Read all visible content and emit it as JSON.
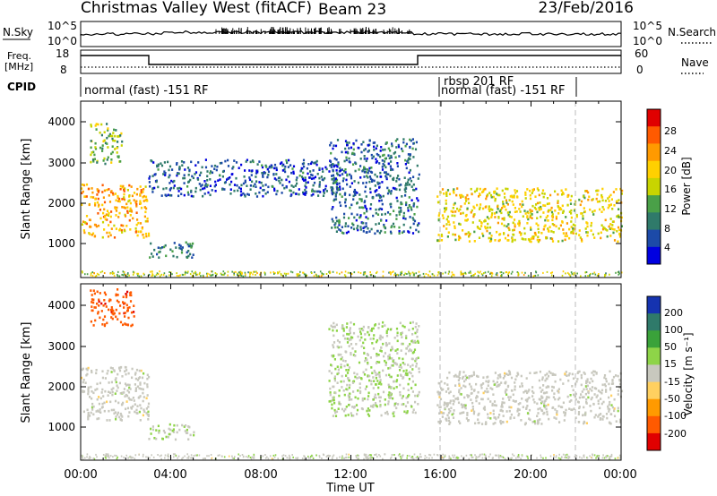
{
  "header": {
    "title": "Christmas Valley West (fitACF)",
    "beam": "Beam 23",
    "date": "23/Feb/2016"
  },
  "top_panels": {
    "nsky_label": "N.Sky",
    "nsky_ticks": [
      "10^5",
      "10^0"
    ],
    "nsearch_label": "N.Search",
    "nsearch_ticks": [
      "10^5",
      "10^0"
    ],
    "freq_label_1": "Freq.",
    "freq_label_2": "[MHz]",
    "freq_ticks": [
      "18",
      "8"
    ],
    "nave_label": "Nave",
    "nave_ticks": [
      "60",
      "0"
    ],
    "cpid_label": "CPID",
    "cpid_segments": [
      "normal (fast) -151 RF",
      "rbsp 201 RF",
      "normal (fast) -151 RF"
    ]
  },
  "axes": {
    "ylabel": "Slant Range [km]",
    "yticks": [
      "4000",
      "3000",
      "2000",
      "1000"
    ],
    "xticks": [
      "00:00",
      "04:00",
      "08:00",
      "12:00",
      "16:00",
      "20:00",
      "00:00"
    ],
    "xlabel": "Time UT"
  },
  "power_scale": {
    "label": "Power [dB]",
    "ticks": [
      "28",
      "24",
      "20",
      "16",
      "12",
      "8",
      "4"
    ],
    "colors": [
      "#e00000",
      "#ff5a00",
      "#ff9a00",
      "#ffd000",
      "#c8d400",
      "#4aa048",
      "#2f7a6a",
      "#1c4aa8",
      "#0000e0"
    ]
  },
  "velocity_scale": {
    "label": "Velocity [m s⁻¹]",
    "ticks": [
      "200",
      "100",
      "50",
      "15",
      "-15",
      "-50",
      "-100",
      "-200"
    ],
    "colors": [
      "#1533b0",
      "#2f7a6a",
      "#3aa23a",
      "#8ed448",
      "#c8c8be",
      "#ffd060",
      "#ff9a00",
      "#ff5a00",
      "#e00000"
    ]
  },
  "chart_data": [
    {
      "type": "heatmap",
      "title": "Power",
      "xlabel": "Time UT",
      "ylabel": "Slant Range [km]",
      "xlim": [
        0,
        24
      ],
      "ylim": [
        200,
        4500
      ],
      "zlabel": "Power [dB]",
      "zlim": [
        0,
        32
      ],
      "features": [
        {
          "t0": 0.0,
          "t1": 3.0,
          "r0": 1200,
          "r1": 2500,
          "z": 22
        },
        {
          "t0": 0.4,
          "t1": 1.8,
          "r0": 3000,
          "r1": 4000,
          "z": 14
        },
        {
          "t0": 3.0,
          "t1": 5.0,
          "r0": 700,
          "r1": 1100,
          "z": 9
        },
        {
          "t0": 3.0,
          "t1": 11.5,
          "r0": 2200,
          "r1": 3100,
          "z": 6
        },
        {
          "t0": 11.0,
          "t1": 15.0,
          "r0": 1300,
          "r1": 3600,
          "z": 7
        },
        {
          "t0": 15.8,
          "t1": 24.0,
          "r0": 1100,
          "r1": 2400,
          "z": 18
        }
      ]
    },
    {
      "type": "heatmap",
      "title": "Velocity",
      "xlabel": "Time UT",
      "ylabel": "Slant Range [km]",
      "xlim": [
        0,
        24
      ],
      "ylim": [
        200,
        4500
      ],
      "zlabel": "Velocity [m s⁻¹]",
      "zlim": [
        -250,
        250
      ],
      "features": [
        {
          "t0": 0.4,
          "t1": 2.4,
          "r0": 3500,
          "r1": 4400,
          "z": -170
        },
        {
          "t0": 0.0,
          "t1": 3.0,
          "r0": 1200,
          "r1": 2500,
          "z": 0
        },
        {
          "t0": 3.0,
          "t1": 5.0,
          "r0": 700,
          "r1": 1100,
          "z": 30
        },
        {
          "t0": 11.0,
          "t1": 15.0,
          "r0": 1300,
          "r1": 3600,
          "z": 25
        },
        {
          "t0": 15.8,
          "t1": 24.0,
          "r0": 1100,
          "r1": 2400,
          "z": 0
        }
      ]
    }
  ]
}
